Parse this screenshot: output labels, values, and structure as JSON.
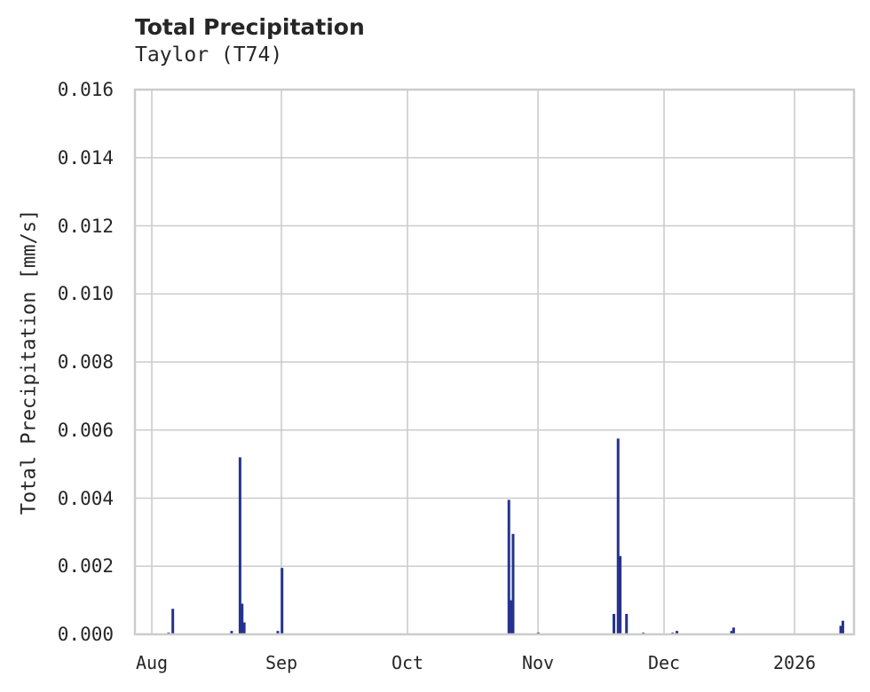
{
  "chart_data": {
    "type": "bar",
    "title": "Total Precipitation",
    "subtitle": "Taylor (T74)",
    "xlabel": "",
    "ylabel": "Total Precipitation [mm/s]",
    "ylim": [
      0,
      0.016
    ],
    "yticks": [
      "0.000",
      "0.002",
      "0.004",
      "0.006",
      "0.008",
      "0.010",
      "0.012",
      "0.014",
      "0.016"
    ],
    "xticks": [
      "Aug",
      "Sep",
      "Oct",
      "Nov",
      "Dec",
      "2026"
    ],
    "grid": true,
    "legend": null,
    "series_color": "#25338f",
    "series": [
      {
        "name": "Total Precipitation",
        "points": [
          {
            "date": "2025-08-05",
            "value": 5e-05
          },
          {
            "date": "2025-08-06",
            "value": 0.00075
          },
          {
            "date": "2025-08-20",
            "value": 0.0001
          },
          {
            "date": "2025-08-22",
            "value": 0.0052
          },
          {
            "date": "2025-08-22b",
            "value": 0.0009
          },
          {
            "date": "2025-08-23",
            "value": 0.00035
          },
          {
            "date": "2025-08-31",
            "value": 0.0001
          },
          {
            "date": "2025-09-01",
            "value": 0.00195
          },
          {
            "date": "2025-10-25",
            "value": 0.00395
          },
          {
            "date": "2025-10-25b",
            "value": 0.001
          },
          {
            "date": "2025-10-26",
            "value": 0.00295
          },
          {
            "date": "2025-11-01",
            "value": 5e-05
          },
          {
            "date": "2025-11-19",
            "value": 0.0006
          },
          {
            "date": "2025-11-20",
            "value": 0.00575
          },
          {
            "date": "2025-11-20b",
            "value": 0.0023
          },
          {
            "date": "2025-11-22",
            "value": 0.0006
          },
          {
            "date": "2025-11-26",
            "value": 5e-05
          },
          {
            "date": "2025-12-03",
            "value": 5e-05
          },
          {
            "date": "2025-12-04",
            "value": 0.0001
          },
          {
            "date": "2025-12-17",
            "value": 0.0001
          },
          {
            "date": "2025-12-17b",
            "value": 0.0002
          },
          {
            "date": "2026-01-12",
            "value": 0.00025
          },
          {
            "date": "2026-01-12b",
            "value": 0.0004
          }
        ]
      }
    ]
  }
}
